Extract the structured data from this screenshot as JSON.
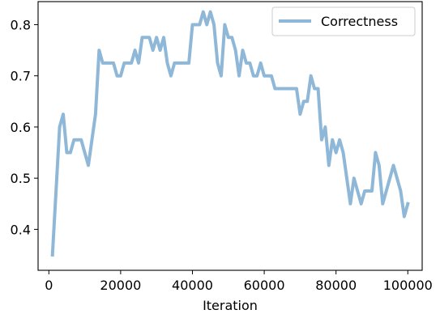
{
  "chart_data": {
    "type": "line",
    "title": "",
    "xlabel": "Iteration",
    "ylabel": "",
    "xlim": [
      -3000,
      104000
    ],
    "ylim": [
      0.32,
      0.845
    ],
    "xticks": [
      0,
      20000,
      40000,
      60000,
      80000,
      100000
    ],
    "yticks": [
      0.4,
      0.5,
      0.6,
      0.7,
      0.8
    ],
    "xtick_labels": [
      "0",
      "20000",
      "40000",
      "60000",
      "80000",
      "100000"
    ],
    "ytick_labels": [
      "0.4",
      "0.5",
      "0.6",
      "0.7",
      "0.8"
    ],
    "grid": false,
    "legend": "top-right",
    "series": [
      {
        "name": "Correctness",
        "color": "#8fb8d8",
        "x": [
          1000,
          2000,
          3000,
          4000,
          5000,
          6000,
          7000,
          8000,
          9000,
          10000,
          11000,
          12000,
          13000,
          14000,
          15000,
          16000,
          17000,
          18000,
          19000,
          20000,
          21000,
          22000,
          23000,
          24000,
          25000,
          26000,
          27000,
          28000,
          29000,
          30000,
          31000,
          32000,
          33000,
          34000,
          35000,
          36000,
          37000,
          38000,
          39000,
          40000,
          41000,
          42000,
          43000,
          44000,
          45000,
          46000,
          47000,
          48000,
          49000,
          50000,
          51000,
          52000,
          53000,
          54000,
          55000,
          56000,
          57000,
          58000,
          59000,
          60000,
          61000,
          62000,
          63000,
          64000,
          65000,
          66000,
          67000,
          68000,
          69000,
          70000,
          71000,
          72000,
          73000,
          74000,
          75000,
          76000,
          77000,
          78000,
          79000,
          80000,
          81000,
          82000,
          83000,
          84000,
          85000,
          86000,
          87000,
          88000,
          89000,
          90000,
          91000,
          92000,
          93000,
          94000,
          95000,
          96000,
          97000,
          98000,
          99000,
          100000
        ],
        "values": [
          0.35,
          0.475,
          0.6,
          0.625,
          0.55,
          0.55,
          0.575,
          0.575,
          0.575,
          0.55,
          0.525,
          0.575,
          0.625,
          0.75,
          0.725,
          0.725,
          0.725,
          0.725,
          0.7,
          0.7,
          0.725,
          0.725,
          0.725,
          0.75,
          0.725,
          0.775,
          0.775,
          0.775,
          0.75,
          0.775,
          0.75,
          0.775,
          0.725,
          0.7,
          0.725,
          0.725,
          0.725,
          0.725,
          0.725,
          0.8,
          0.8,
          0.8,
          0.825,
          0.8,
          0.825,
          0.8,
          0.725,
          0.7,
          0.8,
          0.775,
          0.775,
          0.75,
          0.7,
          0.75,
          0.725,
          0.725,
          0.7,
          0.7,
          0.725,
          0.7,
          0.7,
          0.7,
          0.675,
          0.675,
          0.675,
          0.675,
          0.675,
          0.675,
          0.675,
          0.625,
          0.65,
          0.65,
          0.7,
          0.675,
          0.675,
          0.575,
          0.6,
          0.525,
          0.575,
          0.55,
          0.575,
          0.55,
          0.5,
          0.45,
          0.5,
          0.475,
          0.45,
          0.475,
          0.475,
          0.475,
          0.55,
          0.525,
          0.45,
          0.475,
          0.5,
          0.525,
          0.5,
          0.475,
          0.425,
          0.45
        ]
      }
    ]
  }
}
